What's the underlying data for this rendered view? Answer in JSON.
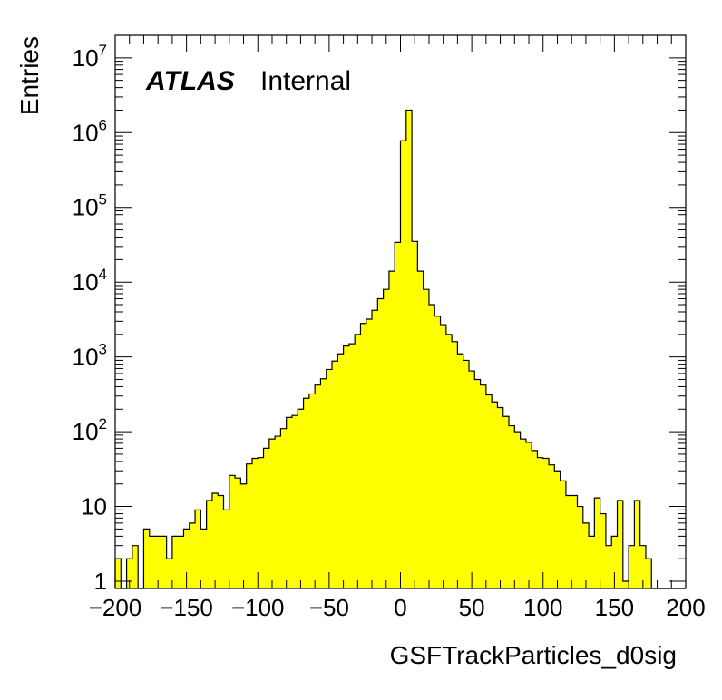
{
  "chart_data": {
    "type": "histogram",
    "xlabel": "GSFTrackParticles_d0sig",
    "ylabel": "Entries",
    "xlim": [
      -200,
      200
    ],
    "ylim": [
      0.8,
      20000000
    ],
    "yscale": "log",
    "grid": false,
    "bin_width": 4,
    "x_start": -200,
    "fill_color": "#ffff00",
    "line_color": "#000000",
    "label": {
      "experiment": "ATLAS",
      "status": "Internal"
    },
    "x_ticks": [
      {
        "value": -200,
        "label": "−200"
      },
      {
        "value": -150,
        "label": "−150"
      },
      {
        "value": -100,
        "label": "−100"
      },
      {
        "value": -50,
        "label": "−50"
      },
      {
        "value": 0,
        "label": "0"
      },
      {
        "value": 50,
        "label": "50"
      },
      {
        "value": 100,
        "label": "100"
      },
      {
        "value": 150,
        "label": "150"
      },
      {
        "value": 200,
        "label": "200"
      }
    ],
    "y_ticks": [
      {
        "value": 1,
        "base": "1",
        "exp": ""
      },
      {
        "value": 10,
        "base": "10",
        "exp": ""
      },
      {
        "value": 100,
        "base": "10",
        "exp": "2"
      },
      {
        "value": 1000,
        "base": "10",
        "exp": "3"
      },
      {
        "value": 10000,
        "base": "10",
        "exp": "4"
      },
      {
        "value": 100000,
        "base": "10",
        "exp": "5"
      },
      {
        "value": 1000000,
        "base": "10",
        "exp": "6"
      },
      {
        "value": 10000000,
        "base": "10",
        "exp": "7"
      }
    ],
    "values": [
      2,
      0,
      2,
      3,
      0,
      5,
      4,
      4,
      4,
      2,
      4,
      4,
      5,
      6,
      9,
      5,
      12,
      15,
      14,
      9,
      26,
      24,
      20,
      37,
      44,
      45,
      60,
      80,
      87,
      110,
      155,
      165,
      200,
      280,
      320,
      420,
      510,
      680,
      880,
      1100,
      1400,
      1500,
      2000,
      2800,
      3200,
      4200,
      6000,
      8000,
      14000,
      34000,
      780000,
      2000000,
      35000,
      14000,
      8000,
      5000,
      3500,
      2700,
      2000,
      1600,
      1100,
      900,
      650,
      500,
      420,
      310,
      250,
      210,
      160,
      120,
      100,
      80,
      72,
      56,
      45,
      44,
      36,
      30,
      22,
      14,
      14,
      10,
      6,
      4,
      13,
      8,
      3,
      4,
      12,
      1,
      3,
      12,
      3,
      2,
      0,
      0,
      0,
      0,
      0,
      0
    ]
  }
}
